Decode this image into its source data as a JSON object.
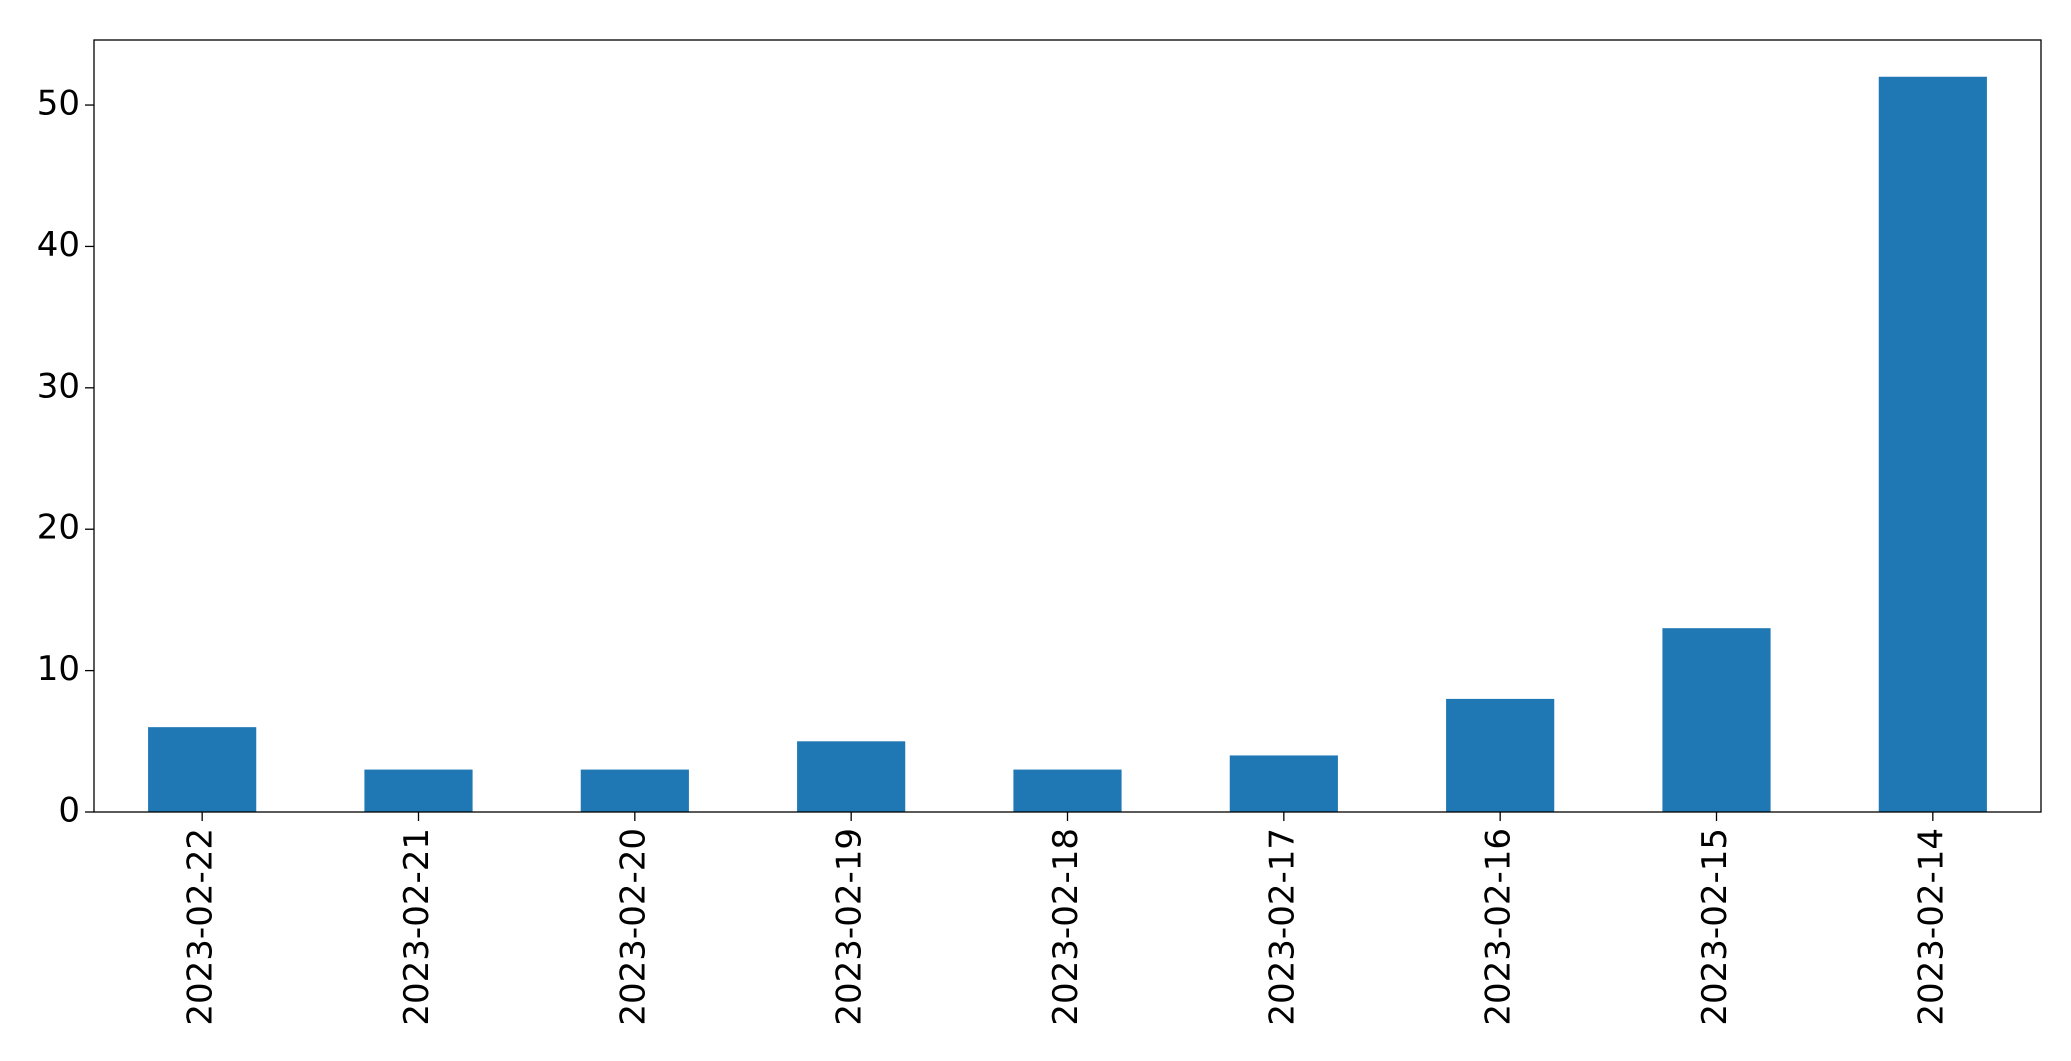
{
  "chart_data": {
    "type": "bar",
    "categories": [
      "2023-02-22",
      "2023-02-21",
      "2023-02-20",
      "2023-02-19",
      "2023-02-18",
      "2023-02-17",
      "2023-02-16",
      "2023-02-15",
      "2023-02-14"
    ],
    "values": [
      6,
      3,
      3,
      5,
      3,
      4,
      8,
      13,
      52
    ],
    "color": "#1f77b4",
    "ylim": [
      0,
      54.6
    ],
    "yticks": [
      0,
      10,
      20,
      30,
      40,
      50
    ],
    "grid": false
  }
}
